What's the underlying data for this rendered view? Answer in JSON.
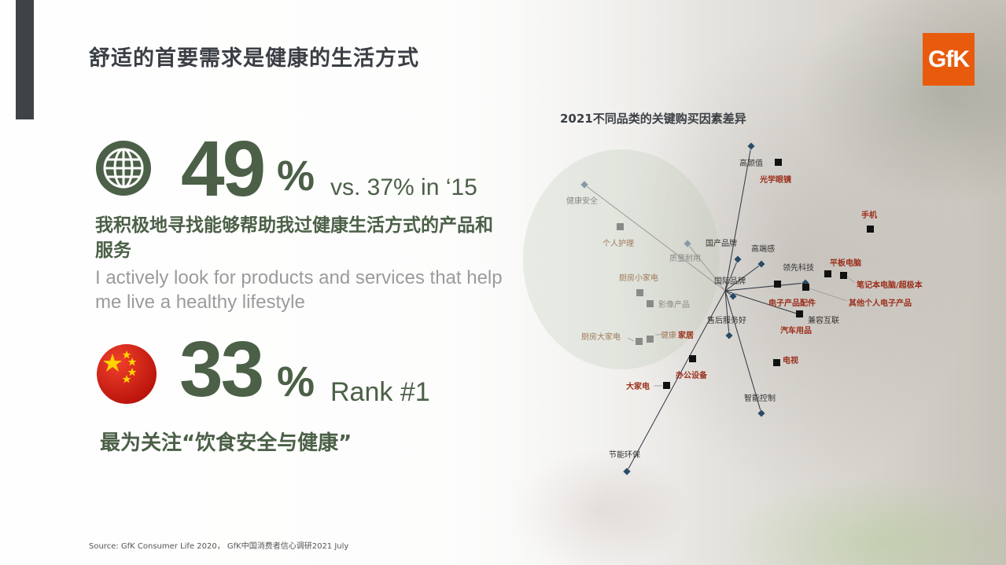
{
  "title": "舒适的首要需求是健康的生活方式",
  "logo_text": "GfK",
  "stat1": {
    "number": "49",
    "percent": "%",
    "comparison": "vs. 37% in ‘15",
    "cn_text": "我积极地寻找能够帮助我过健康生活方式的产品和服务",
    "en_text": "I actively look for products and services that help me live a healthy lifestyle",
    "icon": "globe-icon"
  },
  "stat2": {
    "number": "33",
    "percent": "%",
    "rank": "Rank #1",
    "cn_text": "最为关注“饮食安全与健康”",
    "icon": "china-flag-icon"
  },
  "source": "Source: GfK Consumer Life 2020， GfK中国消费者信心调研2021 July",
  "colors": {
    "accent_green": "#4b6047",
    "title_gray": "#3b3f45",
    "logo_orange": "#e85b0c",
    "category_red": "#9b2e1a"
  },
  "biplot": {
    "title": "2021不同品类的关键购买因素差异",
    "factors": [
      {
        "label": "高颜值",
        "style": "dark"
      },
      {
        "label": "健康安全",
        "style": "gray"
      },
      {
        "label": "国产品牌",
        "style": "dark"
      },
      {
        "label": "质量耐用",
        "style": "gray"
      },
      {
        "label": "高端感",
        "style": "dark"
      },
      {
        "label": "领先科技",
        "style": "dark"
      },
      {
        "label": "国际品牌",
        "style": "dark"
      },
      {
        "label": "售后服务好",
        "style": "dark"
      },
      {
        "label": "兼容互联",
        "style": "dark"
      },
      {
        "label": "智能控制",
        "style": "dark"
      },
      {
        "label": "节能环保",
        "style": "dark"
      }
    ],
    "categories": [
      {
        "label": "光学眼镜",
        "style": "red"
      },
      {
        "label": "手机",
        "style": "red"
      },
      {
        "label": "个人护理",
        "style": "brown"
      },
      {
        "label": "平板电脑",
        "style": "red"
      },
      {
        "label": "笔记本电脑/超极本",
        "style": "red"
      },
      {
        "label": "厨房小家电",
        "style": "brown"
      },
      {
        "label": "影像产品",
        "style": "gray"
      },
      {
        "label": "电子产品配件",
        "style": "red"
      },
      {
        "label": "其他个人电子产品",
        "style": "red"
      },
      {
        "label": "汽车用品",
        "style": "red"
      },
      {
        "label": "厨房大家电",
        "style": "brown"
      },
      {
        "label": "健康",
        "style": "brown"
      },
      {
        "label": "家居",
        "style": "red"
      },
      {
        "label": "电视",
        "style": "red"
      },
      {
        "label": "办公设备",
        "style": "red"
      },
      {
        "label": "大家电",
        "style": "red"
      }
    ]
  }
}
